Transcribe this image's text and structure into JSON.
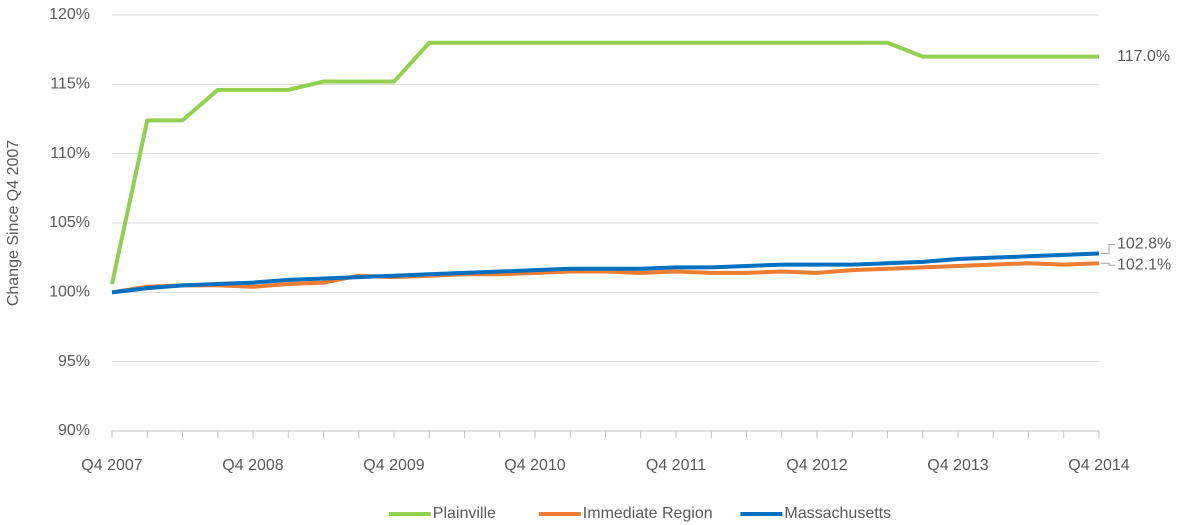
{
  "chart_data": {
    "type": "line",
    "y_label": "Change Since Q4 2007",
    "categories": [
      "Q4 2007",
      null,
      null,
      null,
      "Q4 2008",
      null,
      null,
      null,
      "Q4 2009",
      null,
      null,
      null,
      "Q4 2010",
      null,
      null,
      null,
      "Q4 2011",
      null,
      null,
      null,
      "Q4 2012",
      null,
      null,
      null,
      "Q4 2013",
      null,
      null,
      null,
      "Q4 2014"
    ],
    "series": [
      {
        "name": "Plainville",
        "color": "#92d050",
        "values": [
          100.6,
          112.4,
          112.4,
          114.6,
          114.6,
          114.6,
          115.2,
          115.2,
          115.2,
          118,
          118,
          118,
          118,
          118,
          118,
          118,
          118,
          118,
          118,
          118,
          118,
          118,
          118,
          117,
          117,
          117,
          117,
          117,
          117
        ],
        "value_labels": [
          null,
          null,
          null,
          null,
          null,
          null,
          null,
          null,
          null,
          null,
          null,
          null,
          null,
          null,
          null,
          null,
          null,
          null,
          null,
          null,
          null,
          null,
          null,
          null,
          null,
          null,
          null,
          null,
          "117.0%"
        ]
      },
      {
        "name": "Immediate Region",
        "color": "#ed7d31",
        "values": [
          100,
          100.4,
          100.5,
          100.5,
          100.4,
          100.6,
          100.7,
          101.2,
          101.1,
          101.2,
          101.3,
          101.3,
          101.4,
          101.5,
          101.5,
          101.4,
          101.5,
          101.4,
          101.4,
          101.5,
          101.4,
          101.6,
          101.7,
          101.8,
          101.9,
          102.0,
          102.1,
          102.0,
          102.1
        ],
        "value_labels": [
          null,
          null,
          null,
          null,
          null,
          null,
          null,
          null,
          null,
          null,
          null,
          null,
          null,
          null,
          null,
          null,
          null,
          null,
          null,
          null,
          null,
          null,
          null,
          null,
          null,
          null,
          null,
          null,
          "102.1%"
        ]
      },
      {
        "name": "Massachusetts",
        "color": "#0070c0",
        "values": [
          100,
          100.3,
          100.5,
          100.6,
          100.7,
          100.9,
          101.0,
          101.1,
          101.2,
          101.3,
          101.4,
          101.5,
          101.6,
          101.7,
          101.7,
          101.7,
          101.8,
          101.8,
          101.9,
          102.0,
          102.0,
          102.0,
          102.1,
          102.2,
          102.4,
          102.5,
          102.6,
          102.7,
          102.8
        ],
        "value_labels": [
          null,
          null,
          null,
          null,
          null,
          null,
          null,
          null,
          null,
          null,
          null,
          null,
          null,
          null,
          null,
          null,
          null,
          null,
          null,
          null,
          null,
          null,
          null,
          null,
          null,
          null,
          null,
          null,
          "102.8%"
        ]
      }
    ],
    "ylim": [
      90,
      120
    ],
    "yticks": [
      {
        "value": 90,
        "label": "90%"
      },
      {
        "value": 95,
        "label": "95%"
      },
      {
        "value": 100,
        "label": "100%"
      },
      {
        "value": 105,
        "label": "105%"
      },
      {
        "value": 110,
        "label": "110%"
      },
      {
        "value": 115,
        "label": "115%"
      },
      {
        "value": 120,
        "label": "120%"
      }
    ],
    "grid": true,
    "legend": "bottom"
  }
}
